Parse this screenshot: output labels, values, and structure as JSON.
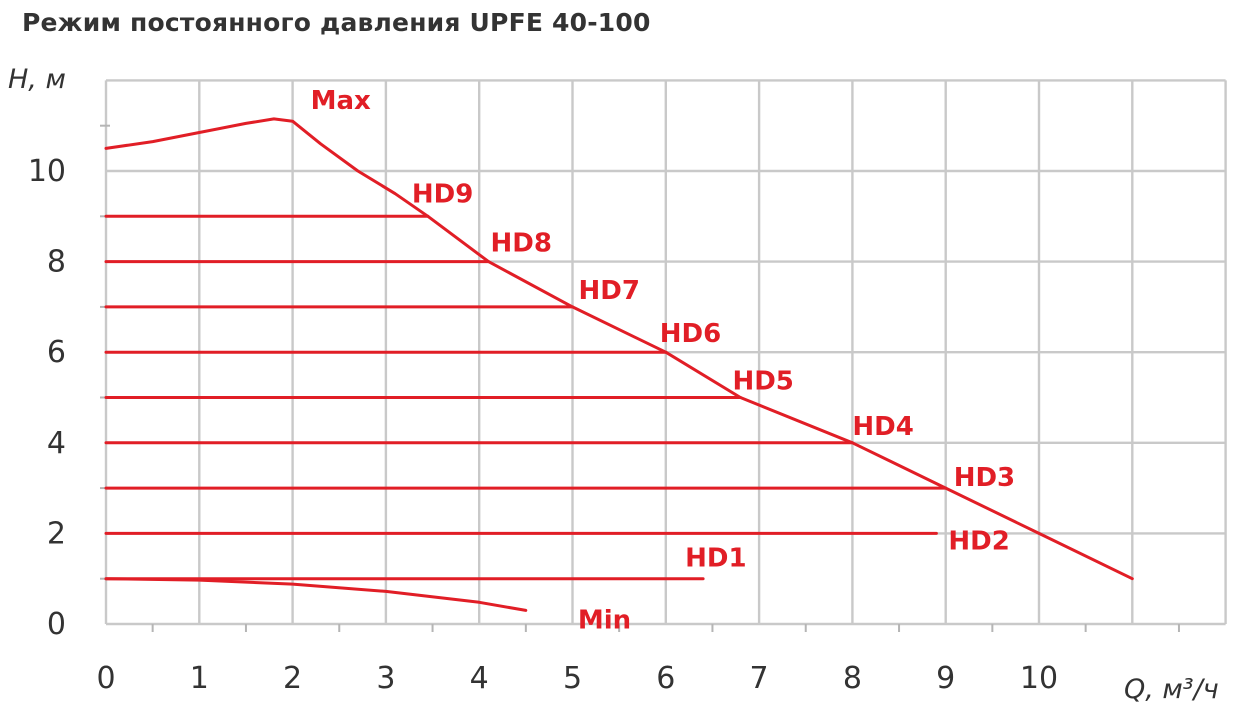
{
  "title": "Режим постоянного давления UPFE 40-100",
  "chart_data": {
    "type": "line",
    "title": "Режим постоянного давления UPFE 40-100",
    "xlabel": "Q, м³/ч",
    "ylabel": "H, м",
    "xlim": [
      0,
      12
    ],
    "ylim": [
      0,
      12
    ],
    "x_ticks": [
      0,
      1,
      2,
      3,
      4,
      5,
      6,
      7,
      8,
      9,
      10
    ],
    "y_ticks": [
      0,
      2,
      4,
      6,
      8,
      10
    ],
    "grid": true,
    "colors": {
      "series": "#e11e26",
      "grid": "#c9c9c9",
      "text": "#333333"
    },
    "series": [
      {
        "name": "Max",
        "x": [
          0,
          0.5,
          1,
          1.5,
          1.8,
          2.0,
          2.3,
          2.7,
          3.1,
          3.45,
          4.1,
          5.0,
          6.0,
          6.8,
          8.0,
          9.0,
          10.0,
          11.0
        ],
        "y": [
          10.5,
          10.65,
          10.85,
          11.05,
          11.15,
          11.1,
          10.6,
          10.0,
          9.5,
          9.0,
          8.0,
          7.0,
          6.0,
          5.0,
          4.0,
          3.0,
          2.0,
          1.0
        ]
      },
      {
        "name": "HD9",
        "x": [
          0,
          3.45
        ],
        "y": [
          9,
          9
        ]
      },
      {
        "name": "HD8",
        "x": [
          0,
          4.1
        ],
        "y": [
          8,
          8
        ]
      },
      {
        "name": "HD7",
        "x": [
          0,
          5.0
        ],
        "y": [
          7,
          7
        ]
      },
      {
        "name": "HD6",
        "x": [
          0,
          6.0
        ],
        "y": [
          6,
          6
        ]
      },
      {
        "name": "HD5",
        "x": [
          0,
          6.8
        ],
        "y": [
          5,
          5
        ]
      },
      {
        "name": "HD4",
        "x": [
          0,
          8.0
        ],
        "y": [
          4,
          4
        ]
      },
      {
        "name": "HD3",
        "x": [
          0,
          9.0
        ],
        "y": [
          3,
          3
        ]
      },
      {
        "name": "HD2",
        "x": [
          0,
          8.9
        ],
        "y": [
          2,
          2
        ]
      },
      {
        "name": "HD1",
        "x": [
          0,
          6.4
        ],
        "y": [
          1,
          1
        ]
      },
      {
        "name": "Min",
        "x": [
          0,
          1.0,
          2.0,
          3.0,
          4.0,
          4.5
        ],
        "y": [
          1.0,
          0.97,
          0.88,
          0.72,
          0.48,
          0.3
        ]
      }
    ]
  }
}
